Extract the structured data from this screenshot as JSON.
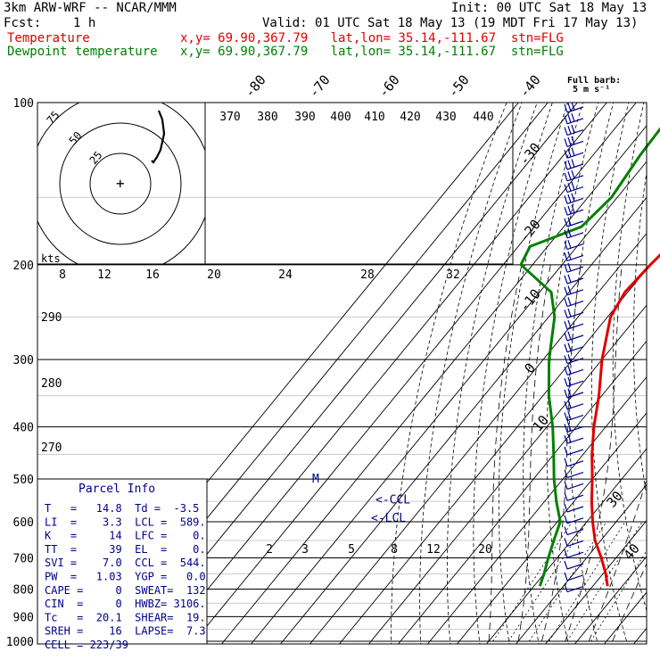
{
  "header": {
    "model": "3km ARW-WRF -- NCAR/MMM",
    "init": "Init: 00 UTC Sat 18 May 13",
    "fcst_label": "Fcst:",
    "fcst_value": "1 h",
    "valid": "Valid: 01 UTC Sat 18 May 13 (19 MDT Fri 17 May 13)",
    "temp_label": "Temperature",
    "temp_info": "x,y= 69.90,367.79   lat,lon= 35.14,-111.67  stn=FLG",
    "dew_label": "Dewpoint temperature",
    "dew_info": "x,y= 69.90,367.79   lat,lon= 35.14,-111.67  stn=FLG",
    "barb_note_1": "Full barb:",
    "barb_note_2": "5 m s⁻¹"
  },
  "colors": {
    "temperature": "#e00000",
    "dewpoint": "#008000",
    "info": "#00008b"
  },
  "chart_data": {
    "type": "skew-t",
    "pressure_levels": [
      {
        "p": 100,
        "label": "100"
      },
      {
        "p": 200,
        "label": "200"
      },
      {
        "p": 300,
        "label": "300"
      },
      {
        "p": 400,
        "label": "400"
      },
      {
        "p": 500,
        "label": "500"
      },
      {
        "p": 600,
        "label": "600"
      },
      {
        "p": 700,
        "label": "700"
      },
      {
        "p": 800,
        "label": "800"
      },
      {
        "p": 900,
        "label": "900"
      },
      {
        "p": 1000,
        "label": "1000"
      }
    ],
    "isotherm_labels": [
      "-80",
      "-70",
      "-60",
      "-50",
      "-40",
      "-30",
      "-20",
      "-10",
      "0",
      "10",
      "30",
      "40"
    ],
    "theta_labels": [
      "370",
      "380",
      "390",
      "400",
      "410",
      "420",
      "430",
      "440"
    ],
    "dry_adiabat_labels": [
      "290",
      "280",
      "270"
    ],
    "hodograph_speed_labels": [
      "8",
      "12",
      "16",
      "20",
      "24",
      "28",
      "32"
    ],
    "hodograph_ring_labels": [
      "75",
      "50",
      "25"
    ],
    "hodograph_units": "kts",
    "mixing_ratio_labels": [
      "2",
      "3",
      "5",
      "8",
      "12",
      "20"
    ],
    "ccl_label": "<-CCL",
    "lcl_label": "<-LCL",
    "m_label": "M",
    "temperature_profile": [
      {
        "p": 100,
        "t": -49
      },
      {
        "p": 120,
        "t": -51
      },
      {
        "p": 150,
        "t": -55
      },
      {
        "p": 175,
        "t": -58
      },
      {
        "p": 200,
        "t": -60
      },
      {
        "p": 225,
        "t": -61
      },
      {
        "p": 250,
        "t": -59
      },
      {
        "p": 300,
        "t": -50
      },
      {
        "p": 350,
        "t": -41
      },
      {
        "p": 400,
        "t": -34
      },
      {
        "p": 450,
        "t": -27
      },
      {
        "p": 500,
        "t": -20
      },
      {
        "p": 550,
        "t": -14
      },
      {
        "p": 600,
        "t": -8
      },
      {
        "p": 650,
        "t": -2
      },
      {
        "p": 700,
        "t": 5
      },
      {
        "p": 750,
        "t": 11
      },
      {
        "p": 790,
        "t": 15
      }
    ],
    "dewpoint_profile": [
      {
        "p": 100,
        "t": -95
      },
      {
        "p": 125,
        "t": -94
      },
      {
        "p": 150,
        "t": -92
      },
      {
        "p": 170,
        "t": -94
      },
      {
        "p": 185,
        "t": -106
      },
      {
        "p": 200,
        "t": -104
      },
      {
        "p": 225,
        "t": -86
      },
      {
        "p": 250,
        "t": -78
      },
      {
        "p": 300,
        "t": -68
      },
      {
        "p": 350,
        "t": -58
      },
      {
        "p": 400,
        "t": -48
      },
      {
        "p": 450,
        "t": -40
      },
      {
        "p": 500,
        "t": -33
      },
      {
        "p": 550,
        "t": -26
      },
      {
        "p": 600,
        "t": -19
      },
      {
        "p": 650,
        "t": -16
      },
      {
        "p": 700,
        "t": -13
      },
      {
        "p": 750,
        "t": -10
      },
      {
        "p": 790,
        "t": -8
      }
    ]
  },
  "parcel_info": {
    "title": "Parcel Info",
    "rows": [
      "T   =   14.8  Td =  -3.5",
      "LI  =    3.3  LCL =  589.",
      "K   =     14  LFC =    0.",
      "TT  =     39  EL  =    0.",
      "SVI =    7.0  CCL =  544.",
      "PW  =   1.03  YGP =   0.0",
      "CAPE =     0  SWEAT=  132",
      "CIN  =     0  HWBZ= 3106.",
      "Tc   =  20.1  SHEAR=  19.",
      "SREH =    16  LAPSE=  7.3",
      "CELL = 223/39"
    ]
  }
}
